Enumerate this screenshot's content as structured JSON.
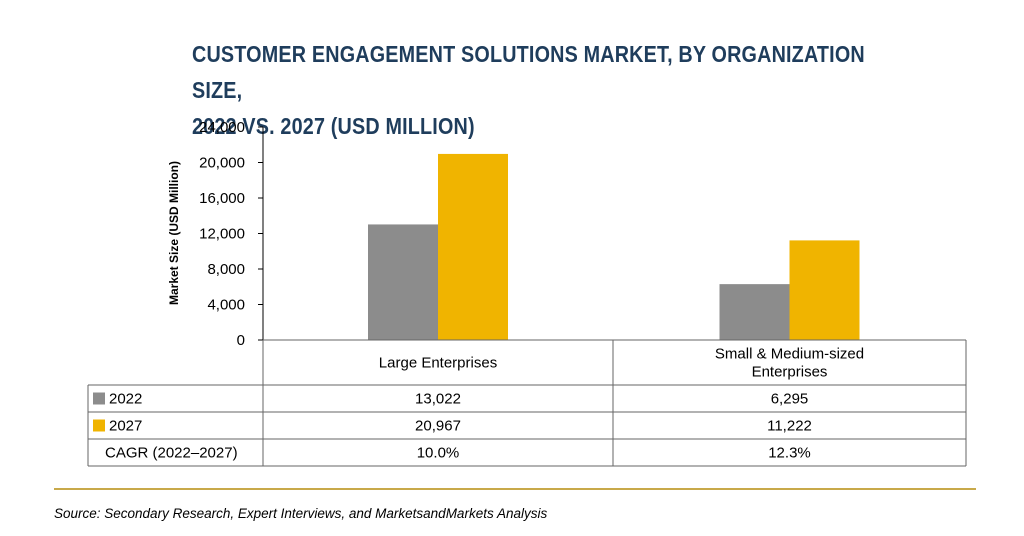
{
  "title_lines": [
    "CUSTOMER ENGAGEMENT SOLUTIONS MARKET, BY ORGANIZATION SIZE,",
    "2022 VS. 2027 (USD MILLION)"
  ],
  "source": "Source: Secondary Research, Expert Interviews, and MarketsandMarkets Analysis",
  "colors": {
    "2022": "#8c8c8c",
    "2027": "#f0b400",
    "title": "#1f3d5c",
    "rule": "#c8a94a"
  },
  "chart_data": {
    "type": "bar",
    "title": "CUSTOMER ENGAGEMENT SOLUTIONS MARKET, BY ORGANIZATION SIZE, 2022 VS. 2027 (USD MILLION)",
    "ylabel": "Market Size (USD Million)",
    "xlabel": "",
    "ylim": [
      0,
      24000
    ],
    "yticks": [
      "0",
      "4,000",
      "8,000",
      "12,000",
      "16,000",
      "20,000",
      "24,000"
    ],
    "ytick_values": [
      0,
      4000,
      8000,
      12000,
      16000,
      20000,
      24000
    ],
    "categories": [
      [
        "Large Enterprises"
      ],
      [
        "Small & Medium-sized",
        "Enterprises"
      ]
    ],
    "series": [
      {
        "name": "2022",
        "values": [
          13022,
          6295
        ],
        "labels": [
          "13,022",
          "6,295"
        ]
      },
      {
        "name": "2027",
        "values": [
          20967,
          11222
        ],
        "labels": [
          "20,967",
          "11,222"
        ]
      }
    ],
    "table": {
      "extra_row_label": "CAGR (2022–2027)",
      "extra_row_values": [
        "10.0%",
        "12.3%"
      ]
    },
    "grid": false,
    "legend": "table"
  }
}
